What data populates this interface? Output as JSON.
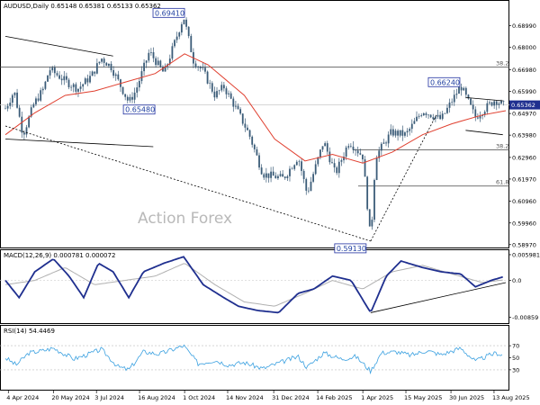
{
  "header": {
    "symbol_line": "AUDUSD,Daily  0.65148 0.65381 0.65133 0.65362"
  },
  "watermark": "Action Forex",
  "colors": {
    "candle": "#3b5c78",
    "ma": "#e04030",
    "macd": "#1f2f8f",
    "signal": "#b0b0b0",
    "rsi": "#3aa0e0",
    "trendline": "#000000",
    "price_tag": "#1f2f8f",
    "box_border": "#2030a0"
  },
  "chart_data": [
    {
      "type": "candlestick",
      "pane": "price",
      "title": "AUDUSD,Daily",
      "ylim": [
        0.5892,
        0.7
      ],
      "y_ticks": [
        "0.68990",
        "0.68000",
        "0.66980",
        "0.65990",
        "0.64970",
        "0.63980",
        "0.62960",
        "0.61970",
        "0.60960",
        "0.59960",
        "0.58970"
      ],
      "y_tick_values": [
        0.6899,
        0.68,
        0.6698,
        0.6599,
        0.6497,
        0.6398,
        0.6296,
        0.6197,
        0.6096,
        0.5996,
        0.5897
      ],
      "current_price_label": "0.65362",
      "current_price": 0.65362,
      "x_ticks": [
        "4 Apr 2024",
        "20 May 2024",
        "3 Jul 2024",
        "16 Aug 2024",
        "1 Oct 2024",
        "14 Nov 2024",
        "31 Dec 2024",
        "14 Feb 2025",
        "1 Apr 2025",
        "15 May 2025",
        "30 Jun 2025",
        "13 Aug 2025"
      ],
      "x_tick_dates": [
        "2024-04-04",
        "2024-05-20",
        "2024-07-03",
        "2024-08-16",
        "2024-10-01",
        "2024-11-14",
        "2024-12-31",
        "2025-02-14",
        "2025-04-01",
        "2025-05-15",
        "2025-06-30",
        "2025-08-13"
      ],
      "x_range": [
        "2024-04-01",
        "2025-08-25"
      ],
      "price_path": [
        [
          "2024-04-01",
          0.652
        ],
        [
          "2024-04-10",
          0.66
        ],
        [
          "2024-04-19",
          0.64
        ],
        [
          "2024-04-30",
          0.654
        ],
        [
          "2024-05-10",
          0.661
        ],
        [
          "2024-05-16",
          0.67
        ],
        [
          "2024-06-03",
          0.664
        ],
        [
          "2024-06-14",
          0.661
        ],
        [
          "2024-06-28",
          0.667
        ],
        [
          "2024-07-08",
          0.675
        ],
        [
          "2024-07-18",
          0.671
        ],
        [
          "2024-08-05",
          0.6548
        ],
        [
          "2024-08-12",
          0.66
        ],
        [
          "2024-08-26",
          0.678
        ],
        [
          "2024-09-10",
          0.668
        ],
        [
          "2024-09-30",
          0.6941
        ],
        [
          "2024-10-10",
          0.674
        ],
        [
          "2024-10-20",
          0.669
        ],
        [
          "2024-11-01",
          0.658
        ],
        [
          "2024-11-10",
          0.662
        ],
        [
          "2024-11-25",
          0.65
        ],
        [
          "2024-12-06",
          0.64
        ],
        [
          "2024-12-20",
          0.622
        ],
        [
          "2025-01-10",
          0.62
        ],
        [
          "2025-01-25",
          0.63
        ],
        [
          "2025-02-03",
          0.613
        ],
        [
          "2025-02-20",
          0.637
        ],
        [
          "2025-03-04",
          0.622
        ],
        [
          "2025-03-18",
          0.637
        ],
        [
          "2025-04-01",
          0.63
        ],
        [
          "2025-04-09",
          0.5913
        ],
        [
          "2025-04-14",
          0.63
        ],
        [
          "2025-04-30",
          0.641
        ],
        [
          "2025-05-15",
          0.64
        ],
        [
          "2025-06-01",
          0.651
        ],
        [
          "2025-06-20",
          0.647
        ],
        [
          "2025-07-10",
          0.6624
        ],
        [
          "2025-07-25",
          0.648
        ],
        [
          "2025-08-05",
          0.6525
        ],
        [
          "2025-08-14",
          0.656
        ],
        [
          "2025-08-22",
          0.6536
        ]
      ],
      "moving_average": [
        [
          "2024-04-01",
          0.64
        ],
        [
          "2024-05-01",
          0.65
        ],
        [
          "2024-06-01",
          0.658
        ],
        [
          "2024-07-01",
          0.66
        ],
        [
          "2024-08-01",
          0.664
        ],
        [
          "2024-09-01",
          0.668
        ],
        [
          "2024-10-01",
          0.677
        ],
        [
          "2024-10-25",
          0.672
        ],
        [
          "2024-12-01",
          0.658
        ],
        [
          "2025-01-01",
          0.638
        ],
        [
          "2025-02-01",
          0.628
        ],
        [
          "2025-03-01",
          0.631
        ],
        [
          "2025-04-01",
          0.627
        ],
        [
          "2025-05-01",
          0.632
        ],
        [
          "2025-06-01",
          0.64
        ],
        [
          "2025-07-01",
          0.645
        ],
        [
          "2025-08-01",
          0.649
        ],
        [
          "2025-08-25",
          0.651
        ]
      ],
      "annotations": [
        {
          "label": "0.69410",
          "date": "2024-09-30",
          "price": 0.6941
        },
        {
          "label": "0.65480",
          "date": "2024-08-05",
          "price": 0.6548
        },
        {
          "label": "0.59130",
          "date": "2025-04-09",
          "price": 0.5913
        },
        {
          "label": "0.66240",
          "date": "2025-07-10",
          "price": 0.6624
        }
      ],
      "fibonacci": [
        {
          "label": "38.2",
          "price": 0.671
        },
        {
          "label": "38.2",
          "price": 0.633
        },
        {
          "label": "61.8",
          "price": 0.6165
        }
      ],
      "trendlines": [
        {
          "from": [
            "2024-04-01",
            0.685
          ],
          "to": [
            "2024-07-20",
            0.676
          ]
        },
        {
          "from": [
            "2024-04-01",
            0.638
          ],
          "to": [
            "2024-08-30",
            0.6345
          ]
        },
        {
          "from": [
            "2024-04-01",
            0.644
          ],
          "to": [
            "2025-04-09",
            0.5913
          ]
        },
        {
          "from": [
            "2025-04-09",
            0.5913
          ],
          "to": [
            "2025-06-15",
            0.649
          ]
        },
        {
          "from": [
            "2025-07-15",
            0.657
          ],
          "to": [
            "2025-08-22",
            0.6555
          ]
        },
        {
          "from": [
            "2025-07-15",
            0.642
          ],
          "to": [
            "2025-08-22",
            0.64
          ]
        }
      ]
    },
    {
      "type": "line",
      "pane": "macd",
      "title": "MACD(12,26,9) 0.000781 0.000072",
      "ylim": [
        -0.0095,
        0.0066
      ],
      "y_ticks": [
        "0.005981",
        "0.0",
        "-0.00859"
      ],
      "y_tick_values": [
        0.005981,
        0.0,
        -0.00859
      ],
      "macd_path": [
        [
          "2024-04-01",
          0.0
        ],
        [
          "2024-04-15",
          -0.004
        ],
        [
          "2024-05-01",
          0.002
        ],
        [
          "2024-05-20",
          0.005
        ],
        [
          "2024-06-05",
          0.001
        ],
        [
          "2024-06-20",
          -0.004
        ],
        [
          "2024-07-05",
          0.004
        ],
        [
          "2024-07-20",
          0.002
        ],
        [
          "2024-08-05",
          -0.004
        ],
        [
          "2024-08-20",
          0.002
        ],
        [
          "2024-09-10",
          0.004
        ],
        [
          "2024-09-30",
          0.0055
        ],
        [
          "2024-10-20",
          -0.001
        ],
        [
          "2024-11-10",
          -0.004
        ],
        [
          "2024-11-25",
          -0.006
        ],
        [
          "2024-12-15",
          -0.007
        ],
        [
          "2025-01-05",
          -0.0075
        ],
        [
          "2025-01-25",
          -0.003
        ],
        [
          "2025-02-10",
          -0.002
        ],
        [
          "2025-03-01",
          0.001
        ],
        [
          "2025-03-20",
          0.0
        ],
        [
          "2025-04-09",
          -0.0075
        ],
        [
          "2025-04-25",
          0.001
        ],
        [
          "2025-05-10",
          0.0045
        ],
        [
          "2025-06-01",
          0.003
        ],
        [
          "2025-06-20",
          0.002
        ],
        [
          "2025-07-10",
          0.0015
        ],
        [
          "2025-07-25",
          -0.0015
        ],
        [
          "2025-08-10",
          0.0
        ],
        [
          "2025-08-22",
          0.0008
        ]
      ],
      "signal_path": [
        [
          "2024-04-01",
          -0.001
        ],
        [
          "2024-05-01",
          0.0
        ],
        [
          "2024-06-01",
          0.003
        ],
        [
          "2024-07-01",
          -0.001
        ],
        [
          "2024-08-01",
          0.0
        ],
        [
          "2024-09-01",
          0.001
        ],
        [
          "2024-10-01",
          0.004
        ],
        [
          "2024-11-01",
          -0.001
        ],
        [
          "2024-12-01",
          -0.005
        ],
        [
          "2025-01-01",
          -0.006
        ],
        [
          "2025-02-01",
          -0.003
        ],
        [
          "2025-03-01",
          0.0
        ],
        [
          "2025-04-01",
          -0.002
        ],
        [
          "2025-05-01",
          0.002
        ],
        [
          "2025-06-01",
          0.0035
        ],
        [
          "2025-07-01",
          0.0015
        ],
        [
          "2025-08-01",
          -0.0005
        ],
        [
          "2025-08-22",
          0.0001
        ]
      ],
      "trendline": {
        "from": [
          "2025-04-09",
          -0.0075
        ],
        "to": [
          "2025-08-25",
          -0.0005
        ]
      }
    },
    {
      "type": "line",
      "pane": "rsi",
      "title": "RSI(14) 54.4469",
      "ylim": [
        0,
        100
      ],
      "y_ticks": [
        "70",
        "50",
        "30"
      ],
      "y_tick_values": [
        70,
        50,
        30
      ],
      "rsi_path": [
        [
          "2024-04-01",
          50
        ],
        [
          "2024-04-12",
          38
        ],
        [
          "2024-04-25",
          58
        ],
        [
          "2024-05-10",
          62
        ],
        [
          "2024-05-20",
          66
        ],
        [
          "2024-06-10",
          48
        ],
        [
          "2024-06-25",
          56
        ],
        [
          "2024-07-08",
          64
        ],
        [
          "2024-07-25",
          35
        ],
        [
          "2024-08-05",
          30
        ],
        [
          "2024-08-20",
          60
        ],
        [
          "2024-09-05",
          56
        ],
        [
          "2024-09-30",
          70
        ],
        [
          "2024-10-15",
          40
        ],
        [
          "2024-11-01",
          46
        ],
        [
          "2024-11-15",
          38
        ],
        [
          "2024-12-01",
          42
        ],
        [
          "2024-12-20",
          32
        ],
        [
          "2025-01-10",
          44
        ],
        [
          "2025-01-25",
          52
        ],
        [
          "2025-02-03",
          34
        ],
        [
          "2025-02-20",
          58
        ],
        [
          "2025-03-10",
          48
        ],
        [
          "2025-03-25",
          52
        ],
        [
          "2025-04-09",
          28
        ],
        [
          "2025-04-20",
          58
        ],
        [
          "2025-05-05",
          60
        ],
        [
          "2025-05-20",
          54
        ],
        [
          "2025-06-05",
          62
        ],
        [
          "2025-06-20",
          55
        ],
        [
          "2025-07-10",
          66
        ],
        [
          "2025-07-25",
          44
        ],
        [
          "2025-08-05",
          52
        ],
        [
          "2025-08-15",
          58
        ],
        [
          "2025-08-22",
          54.4469
        ]
      ]
    }
  ]
}
